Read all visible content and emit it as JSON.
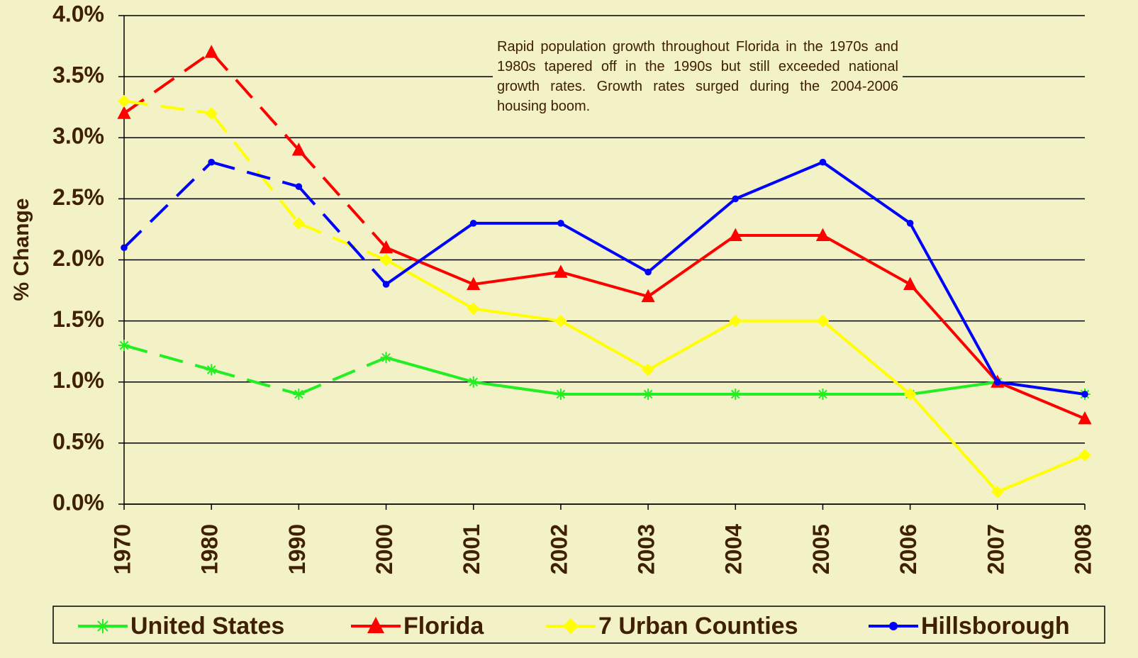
{
  "chart_data": {
    "type": "line",
    "y_label": "% Change",
    "annotation": "Rapid population growth throughout Florida in the 1970s and 1980s tapered off in the 1990s but still exceeded national growth rates.  Growth rates surged during the 2004-2006 housing boom.",
    "categories": [
      "1970",
      "1980",
      "1990",
      "2000",
      "2001",
      "2002",
      "2003",
      "2004",
      "2005",
      "2006",
      "2007",
      "2008"
    ],
    "dashed_segments": 3,
    "series": [
      {
        "name": "United States",
        "color": "#22EE22",
        "marker": "star",
        "values": [
          1.3,
          1.1,
          0.9,
          1.2,
          1.0,
          0.9,
          0.9,
          0.9,
          0.9,
          0.9,
          1.0,
          0.9
        ]
      },
      {
        "name": "Florida",
        "color": "#FF0000",
        "marker": "triangle",
        "values": [
          3.2,
          3.7,
          2.9,
          2.1,
          1.8,
          1.9,
          1.7,
          2.2,
          2.2,
          1.8,
          1.0,
          0.7
        ]
      },
      {
        "name": "7 Urban Counties",
        "color": "#FFFF00",
        "marker": "diamond",
        "values": [
          3.3,
          3.2,
          2.3,
          2.0,
          1.6,
          1.5,
          1.1,
          1.5,
          1.5,
          0.9,
          0.1,
          0.4
        ]
      },
      {
        "name": "Hillsborough",
        "color": "#0000FF",
        "marker": "circle",
        "values": [
          2.1,
          2.8,
          2.6,
          1.8,
          2.3,
          2.3,
          1.9,
          2.5,
          2.8,
          2.3,
          1.0,
          0.9
        ]
      }
    ],
    "ylim": [
      0,
      4
    ],
    "yticks": [
      {
        "value": 0,
        "label": "0.0%"
      },
      {
        "value": 0.5,
        "label": "0.5%"
      },
      {
        "value": 1,
        "label": "1.0%"
      },
      {
        "value": 1.5,
        "label": "1.5%"
      },
      {
        "value": 2,
        "label": "2.0%"
      },
      {
        "value": 2.5,
        "label": "2.5%"
      },
      {
        "value": 3,
        "label": "3.0%"
      },
      {
        "value": 3.5,
        "label": "3.5%"
      },
      {
        "value": 4,
        "label": "4.0%"
      }
    ],
    "grid": true,
    "legend": "bottom"
  }
}
